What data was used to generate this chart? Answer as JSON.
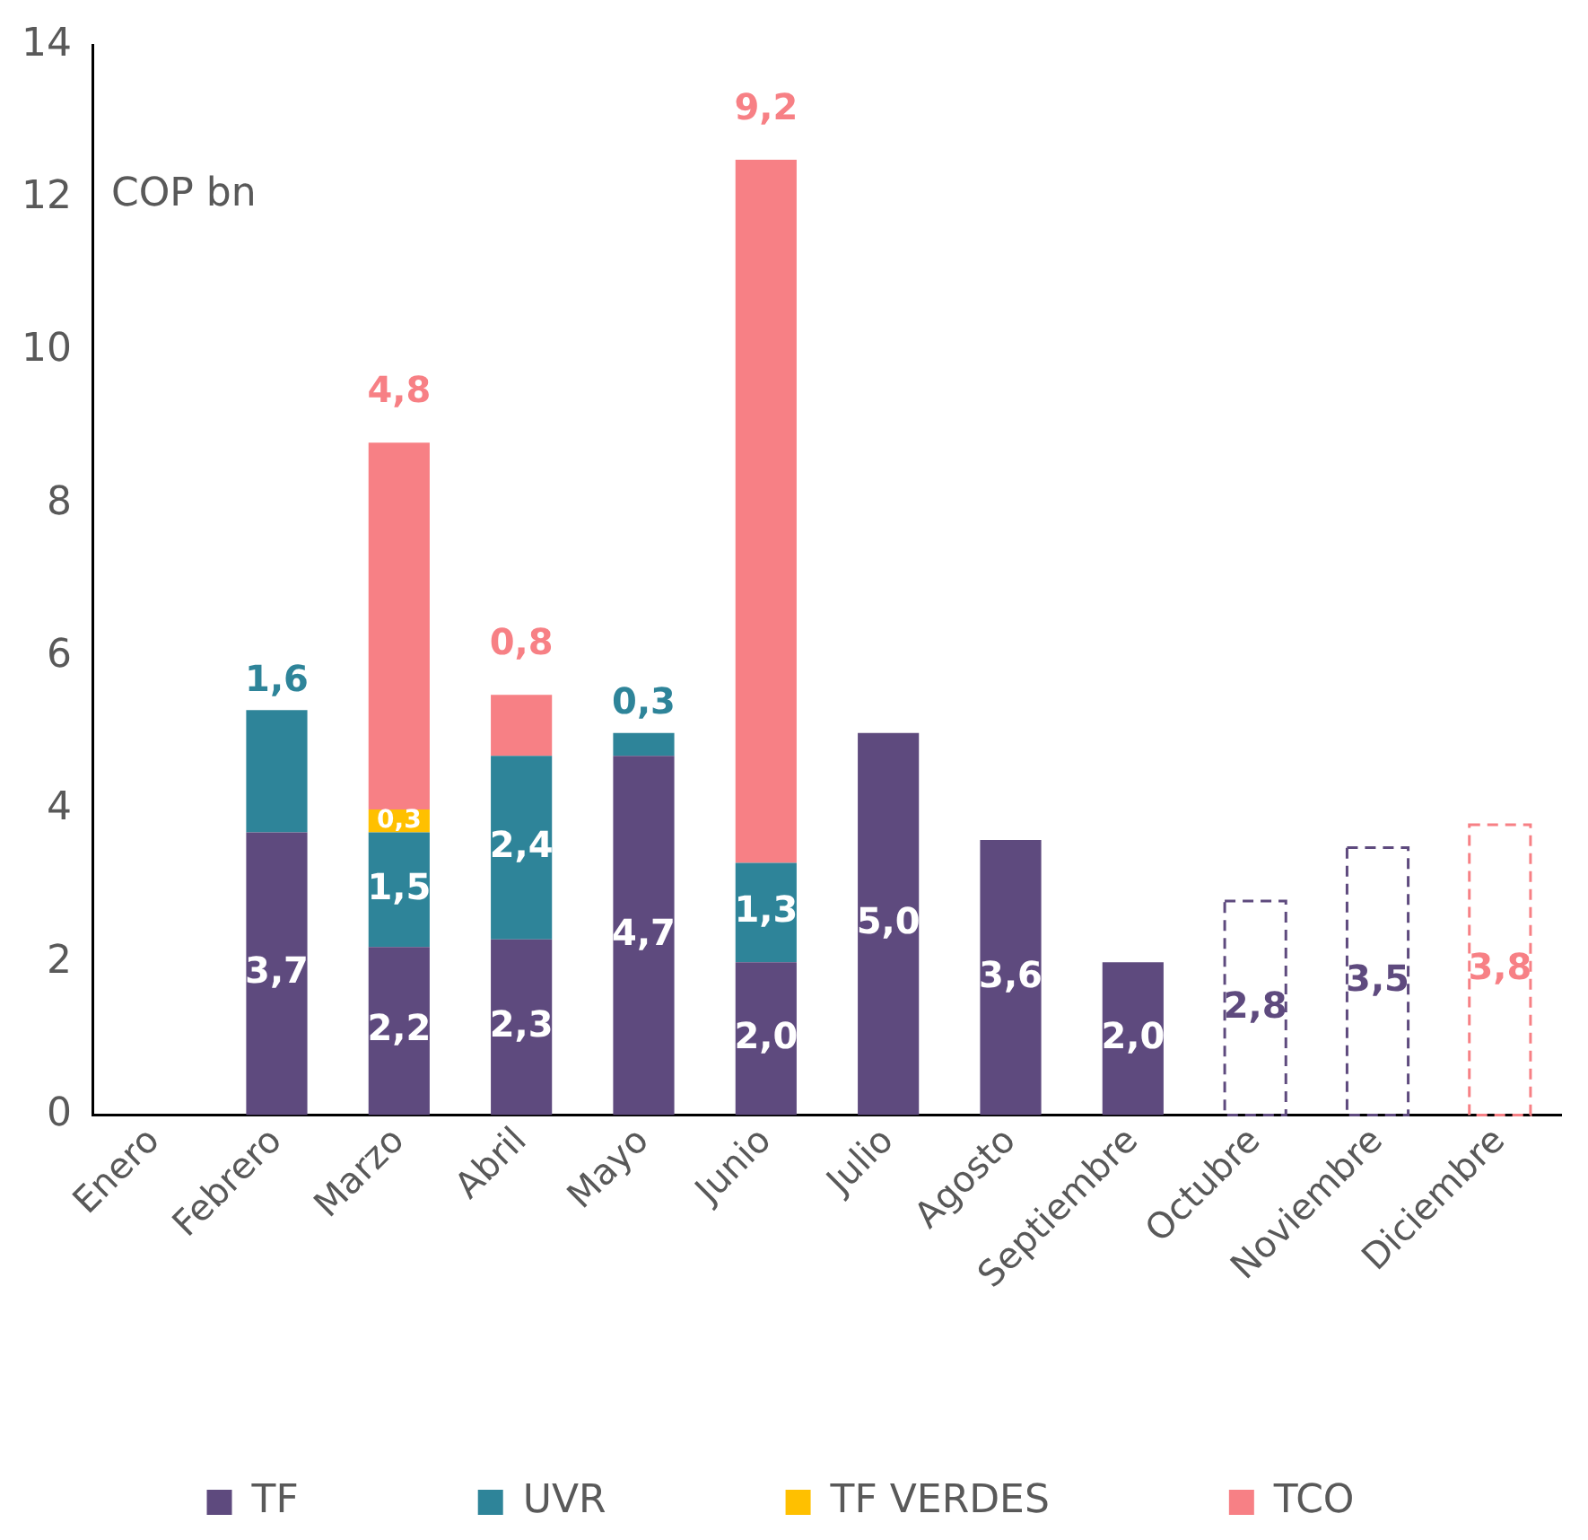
{
  "chart_data": {
    "type": "bar",
    "stacked": true,
    "ylabel": "COP bn",
    "categories": [
      "Enero",
      "Febrero",
      "Marzo",
      "Abril",
      "Mayo",
      "Junio",
      "Julio",
      "Agosto",
      "Septiembre",
      "Octubre",
      "Noviembre",
      "Diciembre"
    ],
    "ylim": [
      0,
      14
    ],
    "yticks": [
      0,
      2,
      4,
      6,
      8,
      10,
      12,
      14
    ],
    "grid": false,
    "legend": "bottom",
    "series": [
      {
        "name": "TF",
        "color": "#5e4a7e",
        "values": [
          null,
          3.7,
          2.2,
          2.3,
          4.7,
          2.0,
          5.0,
          3.6,
          2.0,
          null,
          null,
          null
        ],
        "value_labels": [
          null,
          "3,7",
          "2,2",
          "2,3",
          "4,7",
          "2,0",
          "5,0",
          "3,6",
          "2,0",
          null,
          null,
          null
        ]
      },
      {
        "name": "UVR",
        "color": "#2e8499",
        "values": [
          null,
          1.6,
          1.5,
          2.4,
          0.3,
          1.3,
          null,
          null,
          null,
          null,
          null,
          null
        ],
        "value_labels": [
          null,
          "1,6",
          "1,5",
          "2,4",
          "0,3",
          "1,3",
          null,
          null,
          null,
          null,
          null,
          null
        ]
      },
      {
        "name": "TF VERDES",
        "color": "#ffc000",
        "values": [
          null,
          null,
          0.3,
          null,
          null,
          null,
          null,
          null,
          null,
          null,
          null,
          null
        ],
        "value_labels": [
          null,
          null,
          "0,3",
          null,
          null,
          null,
          null,
          null,
          null,
          null,
          null,
          null
        ]
      },
      {
        "name": "TCO",
        "color": "#f78085",
        "values": [
          null,
          null,
          4.8,
          0.8,
          null,
          9.2,
          null,
          null,
          null,
          null,
          null,
          null
        ],
        "value_labels": [
          null,
          null,
          "4,8",
          "0,8",
          null,
          "9,2",
          null,
          null,
          null,
          null,
          null,
          null
        ]
      },
      {
        "color": "#5e4a7e",
        "line_style": "dashed",
        "values": [
          null,
          null,
          null,
          null,
          null,
          null,
          null,
          null,
          null,
          2.8,
          3.5,
          null
        ],
        "value_labels": [
          null,
          null,
          null,
          null,
          null,
          null,
          null,
          null,
          null,
          "2,8",
          "3,5",
          null
        ]
      },
      {
        "color": "#f78085",
        "line_style": "dashed",
        "values": [
          null,
          null,
          null,
          null,
          null,
          null,
          null,
          null,
          null,
          null,
          null,
          3.8
        ],
        "value_labels": [
          null,
          null,
          null,
          null,
          null,
          null,
          null,
          null,
          null,
          null,
          null,
          "3,8"
        ]
      }
    ]
  }
}
